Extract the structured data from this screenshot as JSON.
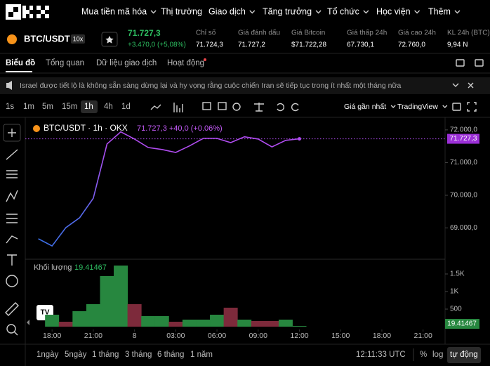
{
  "nav": {
    "items": [
      "Mua tiền mã hóa",
      "Thị trường",
      "Giao dịch",
      "Tăng trưởng",
      "Tổ chức",
      "Học viện",
      "Thêm"
    ]
  },
  "ticker": {
    "symbol": "BTC/USDT",
    "leverage": "10x",
    "price": "71.727,3",
    "change": "+3.470,0 (+5,08%)",
    "stats": [
      {
        "label": "Chỉ số",
        "value": "71.724,3"
      },
      {
        "label": "Giá đánh dấu",
        "value": "71.727,2"
      },
      {
        "label": "Giá Bitcoin",
        "value": "$71.722,28"
      },
      {
        "label": "Giá thấp 24h",
        "value": "67.730,1"
      },
      {
        "label": "Giá cao 24h",
        "value": "72.760,0"
      },
      {
        "label": "KL 24h (BTC)",
        "value": "9,94 N"
      }
    ]
  },
  "tabs": [
    "Biểu đồ",
    "Tổng quan",
    "Dữ liệu giao dịch",
    "Hoạt động"
  ],
  "news": "Israel được tiết lộ là không sẵn sàng dừng lại và hy vọng rằng cuộc chiến Iran sẽ tiếp tục trong ít nhất một tháng nữa",
  "intervals": [
    "1s",
    "1m",
    "5m",
    "15m",
    "1h",
    "4h",
    "1d"
  ],
  "toolbar_right": [
    "Giá gần nhất",
    "TradingView"
  ],
  "chart": {
    "type": "line",
    "legend": "BTC/USDT · 1h · OKX",
    "legend_values": "71.727,3 +40,0 (+0.06%)",
    "x": [
      -1,
      0,
      1,
      2,
      3,
      4,
      5,
      6,
      7,
      8,
      9,
      10,
      11,
      12,
      13,
      14,
      15,
      16,
      17,
      18
    ],
    "values": [
      68670,
      68450,
      69010,
      69310,
      69910,
      71570,
      71940,
      71720,
      71460,
      71400,
      71310,
      71510,
      71740,
      71740,
      71610,
      71790,
      71720,
      71480,
      71680,
      71727.3
    ],
    "last_price": {
      "value": 71727.3,
      "label": "71.727,3"
    },
    "ylim": [
      68130,
      72320
    ],
    "yticks": [
      {
        "value": 72000,
        "label": "72.000,0"
      },
      {
        "value": 71000,
        "label": "71.000,0"
      },
      {
        "value": 70000,
        "label": "70.000,0"
      },
      {
        "value": 69000,
        "label": "69.000,0"
      }
    ],
    "xlim": [
      -1.95,
      28.6
    ],
    "xticks": [
      {
        "value": 0,
        "label": "18:00"
      },
      {
        "value": 3,
        "label": "21:00"
      },
      {
        "value": 6,
        "label": "8"
      },
      {
        "value": 9,
        "label": "03:00"
      },
      {
        "value": 12,
        "label": "06:00"
      },
      {
        "value": 15,
        "label": "09:00"
      },
      {
        "value": 18,
        "label": "12:00"
      },
      {
        "value": 21,
        "label": "15:00"
      },
      {
        "value": 24,
        "label": "18:00"
      },
      {
        "value": 27,
        "label": "21:00"
      }
    ],
    "volume": {
      "type": "bar",
      "title": "Khối lượng",
      "last": {
        "value": 19.41467,
        "label": "19.41467"
      },
      "x": [
        0,
        1,
        2,
        3,
        4,
        5,
        6,
        7,
        8,
        9,
        10,
        11,
        12,
        13,
        14,
        15,
        16,
        17,
        18
      ],
      "values": [
        340,
        140,
        440,
        640,
        1440,
        1740,
        640,
        300,
        300,
        140,
        200,
        200,
        340,
        540,
        200,
        160,
        160,
        200,
        19.41467
      ],
      "colors": [
        "#27873f",
        "#7d2a3b",
        "#27873f",
        "#27873f",
        "#27873f",
        "#27873f",
        "#7d2a3b",
        "#27873f",
        "#27873f",
        "#7d2a3b",
        "#27873f",
        "#27873f",
        "#27873f",
        "#7d2a3b",
        "#27873f",
        "#7d2a3b",
        "#7d2a3b",
        "#27873f",
        "#27873f"
      ],
      "ylim": [
        0,
        1860
      ],
      "yticks": [
        {
          "value": 1500,
          "label": "1.5K"
        },
        {
          "value": 1000,
          "label": "1K"
        },
        500
      ]
    }
  },
  "bottom": {
    "ranges": [
      "1ngày",
      "5ngày",
      "1 tháng",
      "3 tháng",
      "6 tháng",
      "1 năm"
    ],
    "time": "12:11:33 UTC",
    "options": [
      "%",
      "log",
      "tự động"
    ]
  }
}
